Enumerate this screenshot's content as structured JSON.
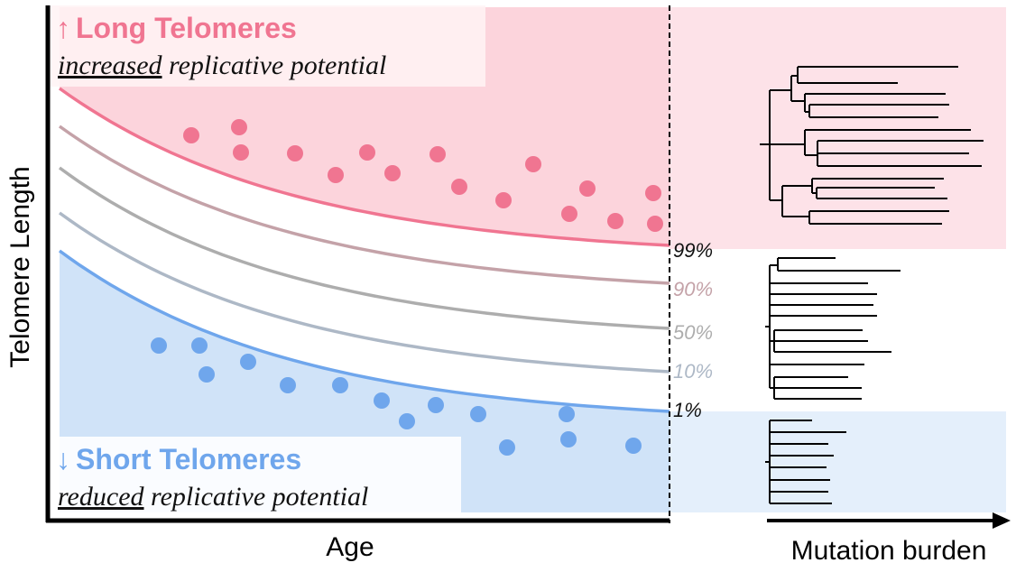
{
  "axes": {
    "ylabel": "Telomere Length",
    "xlabel": "Age",
    "right_xlabel": "Mutation burden"
  },
  "long_box": {
    "arrow": "↑",
    "title": "Long Telomeres",
    "subtitle_emph": "increased",
    "subtitle_rest": " replicative potential"
  },
  "short_box": {
    "arrow": "↓",
    "title": "Short Telomeres",
    "subtitle_emph": "reduced",
    "subtitle_rest": " replicative potential"
  },
  "percentiles": [
    {
      "label": "99%",
      "start": 98,
      "end": 272,
      "color": "#f07591"
    },
    {
      "label": "90%",
      "start": 140,
      "end": 314,
      "color": "#c4a2a8"
    },
    {
      "label": "50%",
      "start": 186,
      "end": 364,
      "color": "#adadad"
    },
    {
      "label": "10%",
      "start": 236,
      "end": 412,
      "color": "#adb8c6"
    },
    {
      "label": "1%",
      "start": 278,
      "end": 456,
      "color": "#6fa6ec"
    }
  ],
  "label_colors": [
    "#111111",
    "#c4a2a8",
    "#adadad",
    "#adb8c6",
    "#111111"
  ],
  "colors": {
    "long_fill": "#fcd4dc",
    "short_fill": "#d0e3f8",
    "long_text": "#f07591",
    "short_text": "#6fa6ec",
    "long_dot": "#f07591",
    "short_dot": "#6fa6ec"
  },
  "pink_dots": [
    [
      212,
      150
    ],
    [
      265,
      141
    ],
    [
      267,
      169
    ],
    [
      327,
      170
    ],
    [
      372,
      194
    ],
    [
      407,
      169
    ],
    [
      435,
      192
    ],
    [
      485,
      171
    ],
    [
      509,
      207
    ],
    [
      558,
      222
    ],
    [
      591,
      182
    ],
    [
      651,
      209
    ],
    [
      631,
      237
    ],
    [
      682,
      245
    ],
    [
      724,
      214
    ],
    [
      726,
      248
    ]
  ],
  "blue_dots": [
    [
      176,
      383
    ],
    [
      221,
      383
    ],
    [
      229,
      415
    ],
    [
      275,
      401
    ],
    [
      319,
      427
    ],
    [
      377,
      427
    ],
    [
      423,
      444
    ],
    [
      451,
      467
    ],
    [
      483,
      449
    ],
    [
      530,
      459
    ],
    [
      562,
      496
    ],
    [
      628,
      459
    ],
    [
      630,
      487
    ],
    [
      702,
      494
    ]
  ]
}
